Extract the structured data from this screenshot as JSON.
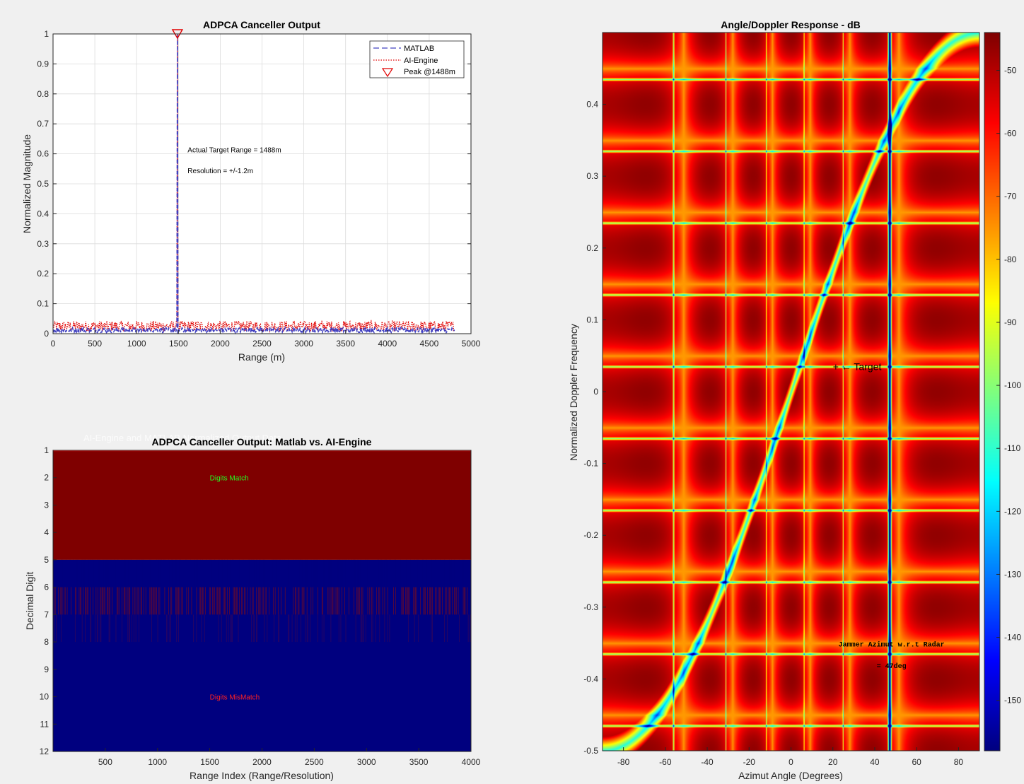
{
  "chart_data": [
    {
      "type": "line",
      "title": "ADPCA Canceller Output",
      "xlabel": "Range (m)",
      "ylabel": "Normalized Magnitude",
      "xlim": [
        0,
        5000
      ],
      "ylim": [
        0,
        1
      ],
      "xticks": [
        0,
        500,
        1000,
        1500,
        2000,
        2500,
        3000,
        3500,
        4000,
        4500,
        5000
      ],
      "yticks": [
        0,
        0.1,
        0.2,
        0.3,
        0.4,
        0.5,
        0.6,
        0.7,
        0.8,
        0.9,
        1
      ],
      "grid": true,
      "legend_position": "top-right",
      "series": [
        {
          "name": "MATLAB",
          "style": "dashed",
          "color": "#4040c0",
          "noise_floor": 0.012,
          "x_end": 4800,
          "peak": {
            "x": 1488,
            "y": 1.0
          }
        },
        {
          "name": "AI-Engine",
          "style": "dotted",
          "color": "#e00000",
          "noise_floor": 0.025,
          "x_end": 4800,
          "peak": {
            "x": 1488,
            "y": 1.0
          }
        },
        {
          "name": "Peak @1488m",
          "style": "marker-triangle-down",
          "color": "#e00000",
          "x": 1488,
          "y": 1.0
        }
      ],
      "annotations": [
        {
          "text": "Actual Target Range = 1488m",
          "x": 1610,
          "y": 0.605
        },
        {
          "text": "Resolution = +/-1.2m",
          "x": 1610,
          "y": 0.535
        }
      ]
    },
    {
      "type": "heatmap",
      "title": "ADPCA Canceller Output: Matlab vs. AI-Engine",
      "ghost_title": "AI-Engine and MATLAB Normalized Output Data",
      "xlabel": "Range Index (Range/Resolution)",
      "ylabel": "Decimal Digit",
      "xlim": [
        0,
        4000
      ],
      "ylim": [
        1,
        12
      ],
      "xticks": [
        500,
        1000,
        1500,
        2000,
        2500,
        3000,
        3500,
        4000
      ],
      "yticks": [
        1,
        2,
        3,
        4,
        5,
        6,
        7,
        8,
        9,
        10,
        11,
        12
      ],
      "match_color": "#7f0000",
      "mismatch_color": "#00007f",
      "matched_digits_full": 5,
      "transition_digits": [
        5,
        8
      ],
      "annotations": [
        {
          "text": "Digits Match",
          "x": 1500,
          "y": 2.1,
          "color": "#22ff22"
        },
        {
          "text": "Digits MisMatch",
          "x": 1500,
          "y": 10.1,
          "color": "#ff2020"
        }
      ]
    },
    {
      "type": "heatmap",
      "title": "Angle/Doppler Response - dB",
      "xlabel": "Azimut Angle (Degrees)",
      "ylabel": "Normalized Doppler Frequency",
      "xlim": [
        -90,
        90
      ],
      "ylim": [
        -0.5,
        0.5
      ],
      "xticks": [
        -80,
        -60,
        -40,
        -20,
        0,
        20,
        40,
        60,
        80
      ],
      "yticks": [
        -0.5,
        -0.4,
        -0.3,
        -0.2,
        -0.1,
        0,
        0.1,
        0.2,
        0.3,
        0.4
      ],
      "colormap": "jet",
      "clim": [
        -158,
        -44
      ],
      "colorbar_ticks": [
        -50,
        -60,
        -70,
        -80,
        -90,
        -100,
        -110,
        -120,
        -130,
        -140,
        -150
      ],
      "jammer_azimuth_deg": 47,
      "target": {
        "x": 20,
        "y": 0.03,
        "label": "+ ← Target"
      },
      "annotations": [
        {
          "text": "Jammer Azimut w.r.t Radar",
          "x": 48,
          "y": -0.355
        },
        {
          "text": "= 47deg",
          "x": 48,
          "y": -0.385
        }
      ]
    }
  ]
}
